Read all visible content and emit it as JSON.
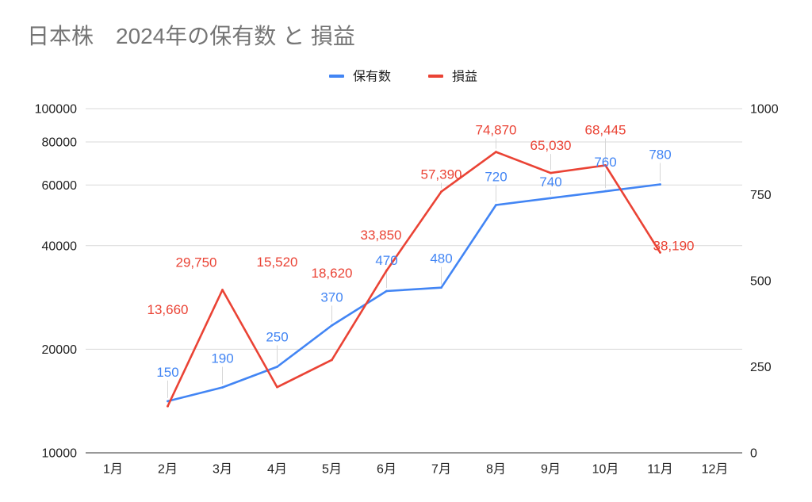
{
  "chart_data": {
    "type": "line",
    "title": "日本株　2024年の保有数 と 損益",
    "legend": "top",
    "grid": true,
    "categories": [
      "1月",
      "2月",
      "3月",
      "4月",
      "5月",
      "6月",
      "7月",
      "8月",
      "9月",
      "10月",
      "11月",
      "12月"
    ],
    "series": [
      {
        "name": "保有数",
        "axis": "right",
        "color": "#4285f4",
        "values": [
          null,
          150,
          190,
          250,
          370,
          470,
          480,
          720,
          740,
          760,
          780,
          null
        ],
        "labels": [
          null,
          "150",
          "190",
          "250",
          "370",
          "470",
          "480",
          "720",
          "740",
          "760",
          "780",
          null
        ]
      },
      {
        "name": "損益",
        "axis": "left",
        "color": "#ea4335",
        "values": [
          null,
          13660,
          29750,
          15520,
          18620,
          33850,
          57390,
          74870,
          65030,
          68445,
          38190,
          null
        ],
        "labels": [
          null,
          "13,660",
          "29,750",
          "15,520",
          "18,620",
          "33,850",
          "57,390",
          "74,870",
          "65,030",
          "68,445",
          "38,190",
          null
        ]
      }
    ],
    "y_left": {
      "scale": "log",
      "range": [
        10000,
        100000
      ],
      "ticks": [
        10000,
        20000,
        40000,
        60000,
        80000,
        100000
      ],
      "tick_labels": [
        "10000",
        "20000",
        "40000",
        "60000",
        "80000",
        "100000"
      ]
    },
    "y_right": {
      "scale": "linear",
      "range": [
        0,
        1000
      ],
      "ticks": [
        0,
        250,
        500,
        750,
        1000
      ],
      "tick_labels": [
        "0",
        "250",
        "500",
        "750",
        "1000"
      ]
    }
  }
}
